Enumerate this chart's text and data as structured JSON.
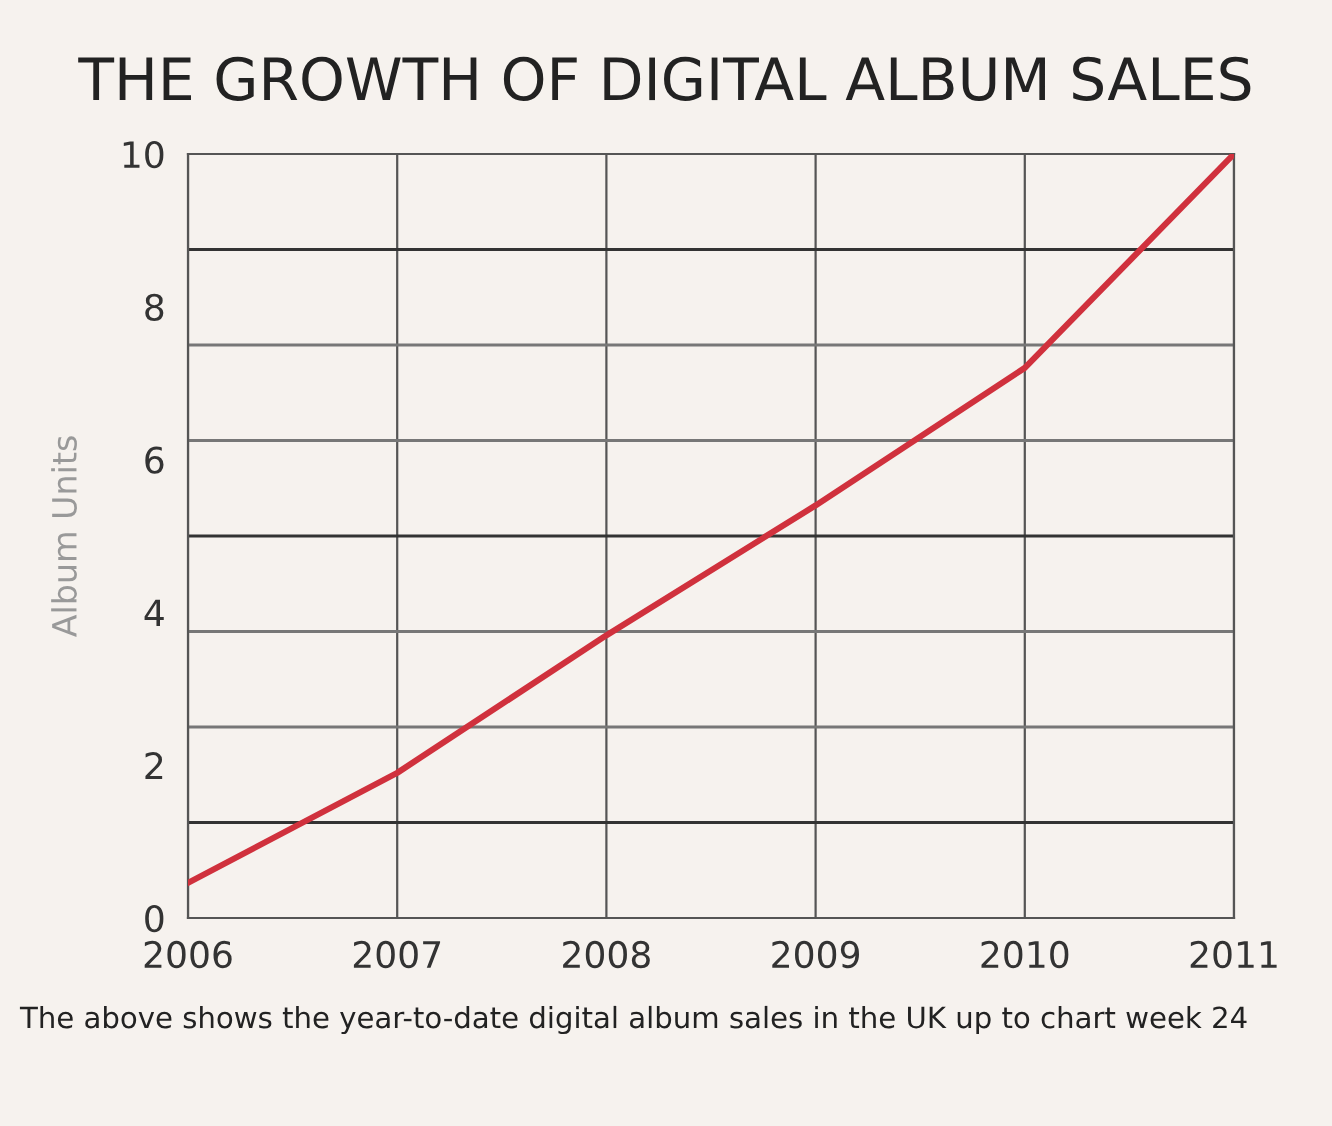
{
  "chart_data": {
    "type": "line",
    "title": "THE GROWTH OF DIGITAL ALBUM SALES",
    "ylabel": "Album Units",
    "x": [
      2006,
      2007,
      2008,
      2009,
      2010,
      2011
    ],
    "series": [
      {
        "color": "#d0313d",
        "values": [
          0.46,
          1.9,
          3.7,
          5.4,
          7.2,
          10
        ]
      }
    ],
    "xlim": [
      2006,
      2011
    ],
    "xticks": [
      2006,
      2007,
      2008,
      2009,
      2010,
      2011
    ],
    "ylim": [
      0,
      10
    ],
    "yticks": [
      0,
      2,
      4,
      6,
      8,
      10
    ],
    "ref_lines": [
      {
        "axis": "y",
        "value": 1.25,
        "color": "#333333"
      },
      {
        "axis": "y",
        "value": 2.5,
        "color": "#777777"
      },
      {
        "axis": "y",
        "value": 3.75,
        "color": "#777777"
      },
      {
        "axis": "y",
        "value": 5,
        "color": "#333333"
      },
      {
        "axis": "y",
        "value": 6.25,
        "color": "#777777"
      },
      {
        "axis": "y",
        "value": 7.5,
        "color": "#777777"
      },
      {
        "axis": "y",
        "value": 8.75,
        "color": "#333333"
      }
    ],
    "grid": "x",
    "legend": false,
    "annotations": [
      "The above shows the year-to-date digital album sales in the UK up to chart week 24"
    ]
  }
}
